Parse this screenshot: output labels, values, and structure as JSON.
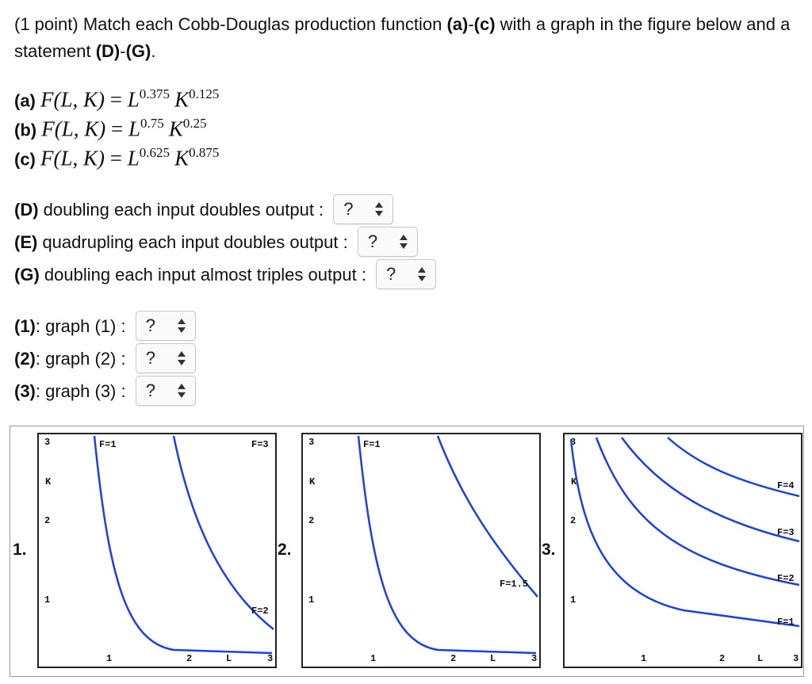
{
  "intro": {
    "part1": "(1 point) Match each Cobb-Douglas production function ",
    "bold1": "(a)",
    "dash1": "-",
    "bold2": "(c)",
    "part2": " with a graph in the figure below and a statement ",
    "bold3": "(D)",
    "dash2": "-",
    "bold4": "(G)",
    "end": "."
  },
  "functions": [
    {
      "label": "(a)",
      "lhs": "F(L, K)",
      "eq": " = ",
      "L": "L",
      "pL": "0.375",
      "K": "K",
      "pK": "0.125"
    },
    {
      "label": "(b)",
      "lhs": "F(L, K)",
      "eq": " = ",
      "L": "L",
      "pL": "0.75",
      "K": "K",
      "pK": "0.25"
    },
    {
      "label": "(c)",
      "lhs": "F(L, K)",
      "eq": " = ",
      "L": "L",
      "pL": "0.625",
      "K": "K",
      "pK": "0.875"
    }
  ],
  "statements": [
    {
      "key": "(D)",
      "text": " doubling each input doubles output : ",
      "value": "?"
    },
    {
      "key": "(E)",
      "text": " quadrupling each input doubles output : ",
      "value": "?"
    },
    {
      "key": "(G)",
      "text": " doubling each input almost triples output : ",
      "value": "?"
    }
  ],
  "graphs": [
    {
      "key": "(1)",
      "text": ": graph (1) : ",
      "value": "?"
    },
    {
      "key": "(2)",
      "text": ": graph (2) : ",
      "value": "?"
    },
    {
      "key": "(3)",
      "text": ": graph (3) : ",
      "value": "?"
    }
  ],
  "figure": {
    "panels": [
      {
        "number": "1.",
        "y_ticks": [
          "3",
          "2",
          "1"
        ],
        "y_axis_label": "K",
        "x_ticks": [
          "1",
          "2",
          "3"
        ],
        "x_axis_label": "L",
        "curve_labels": [
          "F=1",
          "F=3",
          "F=2"
        ]
      },
      {
        "number": "2.",
        "y_ticks": [
          "3",
          "2",
          "1"
        ],
        "y_axis_label": "K",
        "x_ticks": [
          "1",
          "2",
          "3"
        ],
        "x_axis_label": "L",
        "curve_labels": [
          "F=1",
          "F=1.5"
        ]
      },
      {
        "number": "3.",
        "y_ticks": [
          "3",
          "2",
          "1"
        ],
        "y_axis_label": "K",
        "x_ticks": [
          "1",
          "2",
          "3"
        ],
        "x_axis_label": "L",
        "curve_labels": [
          "F=4",
          "F=3",
          "F=2",
          "F=1"
        ]
      }
    ],
    "curve_color": "#1f3fe0"
  }
}
